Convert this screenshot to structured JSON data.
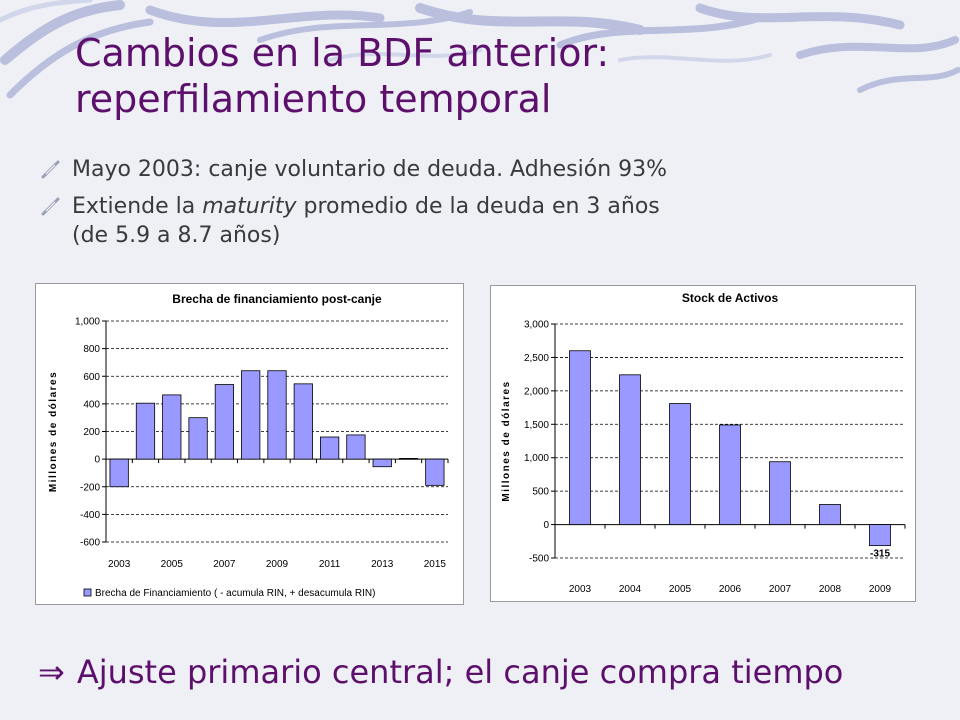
{
  "slide": {
    "title_line1": "Cambios en la BDF anterior:",
    "title_line2": "reperfilamiento temporal",
    "bullets": [
      {
        "prefix": "Mayo 2003: canje voluntario de deuda. Adhesión 93%",
        "italic": "",
        "suffix": ""
      },
      {
        "prefix": "Extiende la ",
        "italic": "maturity",
        "suffix": " promedio de la deuda en 3 años"
      }
    ],
    "bullet2_line2": "(de 5.9 a 8.7 años)",
    "conclusion_arrow": "⇒",
    "conclusion": "Ajuste primario central; el canje compra tiempo"
  },
  "chart_data": [
    {
      "type": "bar",
      "title": "Brecha de financiamiento post-canje",
      "ylabel": "Millones de dólares",
      "ylim": [
        -600,
        1000
      ],
      "yticks": [
        -600,
        -400,
        -200,
        0,
        200,
        400,
        600,
        800,
        1000
      ],
      "ytick_labels": [
        "-600",
        "-400",
        "-200",
        "0",
        "200",
        "400",
        "600",
        "800",
        "1,000"
      ],
      "categories": [
        "2003",
        "2004",
        "2005",
        "2006",
        "2007",
        "2008",
        "2009",
        "2010",
        "2011",
        "2012",
        "2013",
        "2014",
        "2015"
      ],
      "xtick_labels": [
        "2003",
        "",
        "2005",
        "",
        "2007",
        "",
        "2009",
        "",
        "2011",
        "",
        "2013",
        "",
        "2015"
      ],
      "series": [
        {
          "name": "Brecha de Financiamiento ( - acumula RIN, + desacumula RIN)",
          "values": [
            -200,
            405,
            465,
            300,
            540,
            640,
            640,
            545,
            160,
            175,
            -55,
            5,
            -190
          ]
        }
      ],
      "color": "#9999ff",
      "grid": true,
      "legend": "bottom"
    },
    {
      "type": "bar",
      "title": "Stock de Activos",
      "ylabel": "Millones de dólares",
      "ylim": [
        -500,
        3000
      ],
      "yticks": [
        -500,
        0,
        500,
        1000,
        1500,
        2000,
        2500,
        3000
      ],
      "ytick_labels": [
        "-500",
        "0",
        "500",
        "1,000",
        "1,500",
        "2,000",
        "2,500",
        "3,000"
      ],
      "categories": [
        "2003",
        "2004",
        "2005",
        "2006",
        "2007",
        "2008",
        "2009"
      ],
      "xtick_labels": [
        "2003",
        "2004",
        "2005",
        "2006",
        "2007",
        "2008",
        "2009"
      ],
      "series": [
        {
          "name": "",
          "values": [
            2600,
            2240,
            1810,
            1490,
            940,
            300,
            -315
          ]
        }
      ],
      "data_labels": [
        "",
        "",
        "",
        "",
        "",
        "",
        "-315"
      ],
      "color": "#9999ff",
      "grid": true,
      "legend": "none"
    }
  ]
}
